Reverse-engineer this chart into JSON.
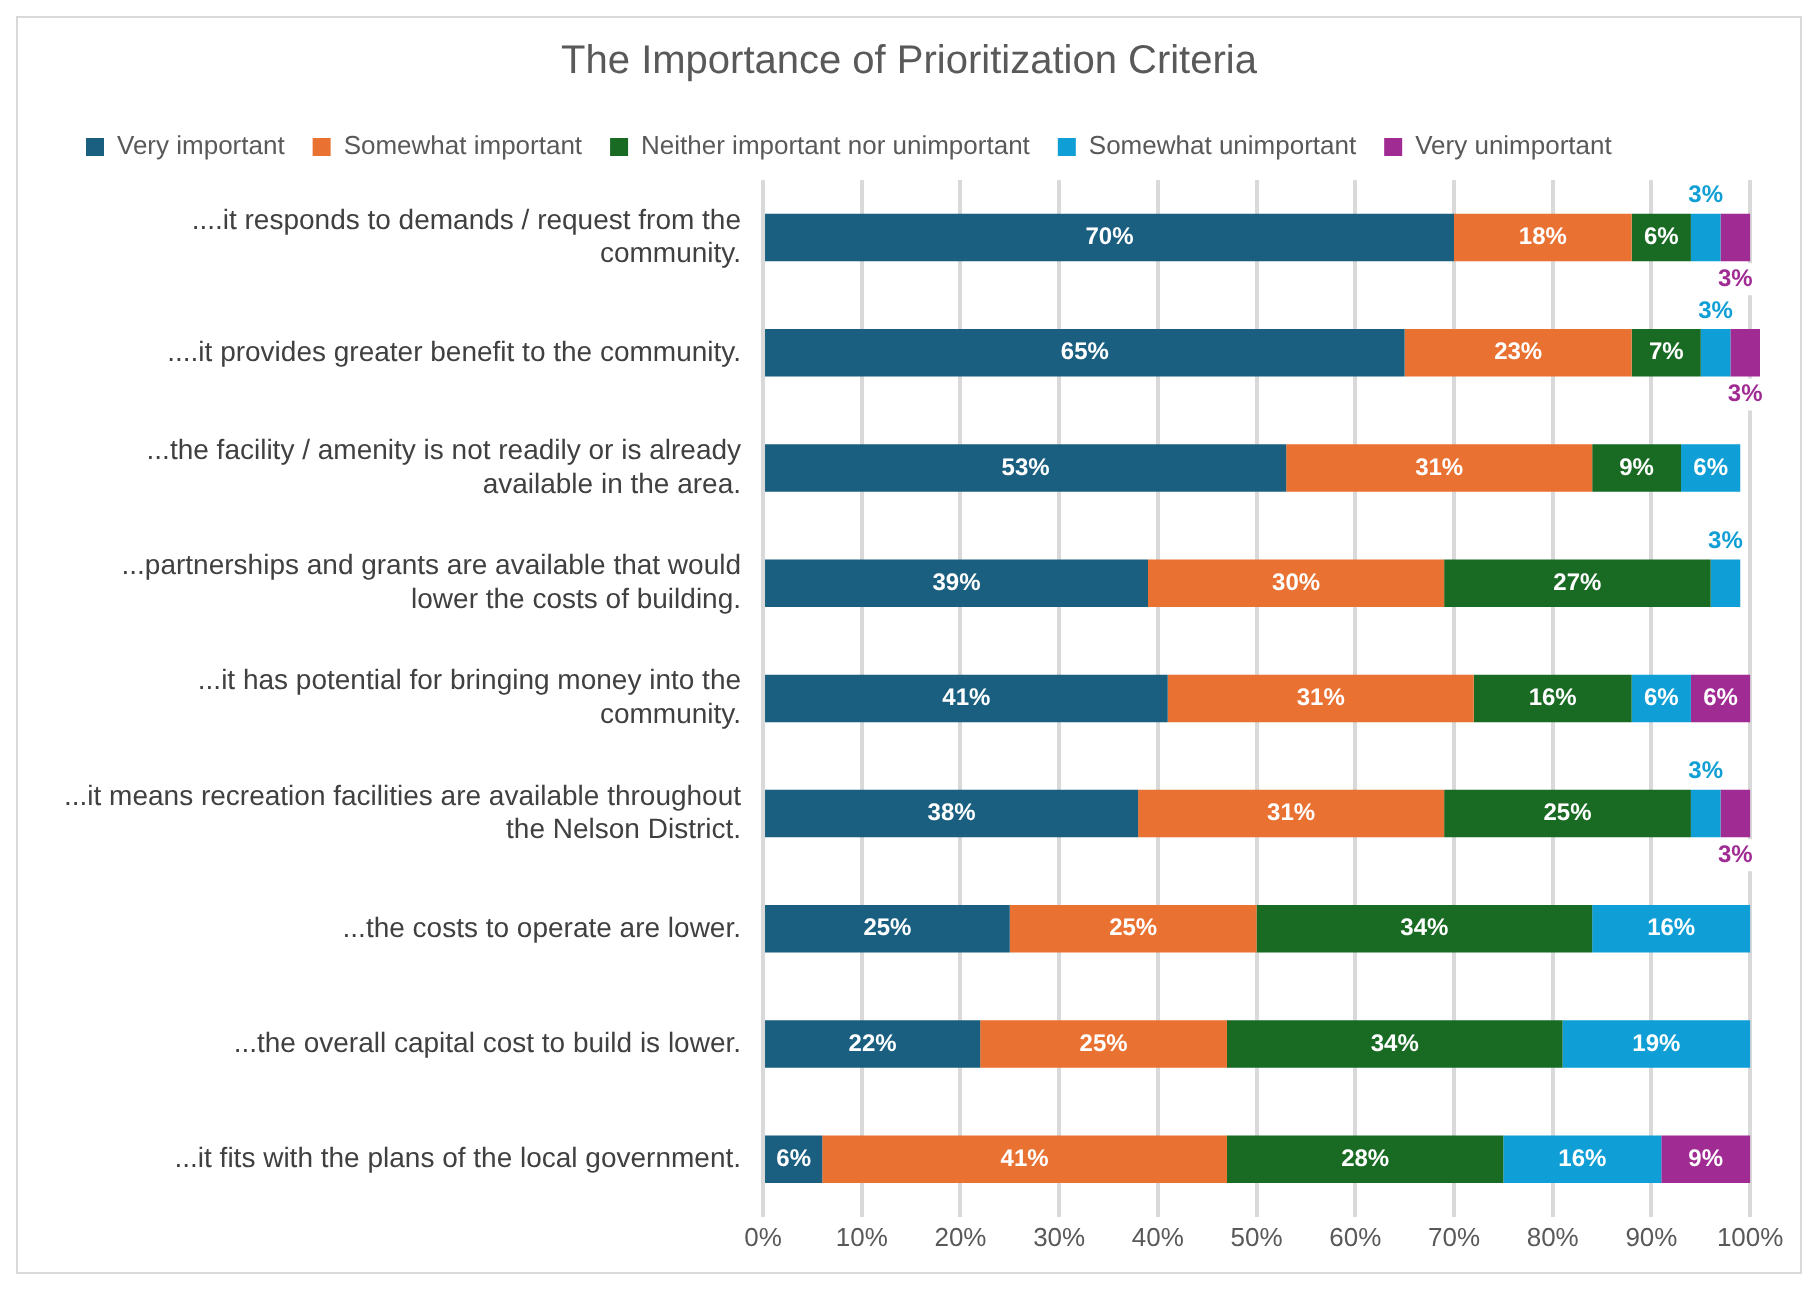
{
  "chart_data": {
    "type": "bar",
    "orientation": "horizontal",
    "stacked": true,
    "title": "The Importance of Prioritization Criteria",
    "categories": [
      "....it responds to demands / request from the community.",
      "....it provides greater benefit to the community.",
      "...the facility / amenity is not readily or is already available in the area.",
      "...partnerships and grants are available that would lower the costs of building.",
      "...it has potential for bringing money into the community.",
      "...it means recreation facilities are available throughout the Nelson District.",
      "...the costs to operate are lower.",
      "...the overall capital cost to build is lower.",
      "...it fits with the plans of the local government."
    ],
    "series": [
      {
        "name": "Very important",
        "color": "#1b5f80",
        "values": [
          70,
          65,
          53,
          39,
          41,
          38,
          25,
          22,
          6
        ],
        "value_labels": [
          "70%",
          "65%",
          "53%",
          "39%",
          "41%",
          "38%",
          "25%",
          "22%",
          "6%"
        ]
      },
      {
        "name": "Somewhat important",
        "color": "#e97132",
        "values": [
          18,
          23,
          31,
          30,
          31,
          31,
          25,
          25,
          41
        ],
        "value_labels": [
          "18%",
          "23%",
          "31%",
          "30%",
          "31%",
          "31%",
          "25%",
          "25%",
          "41%"
        ]
      },
      {
        "name": "Neither important nor unimportant",
        "color": "#196b24",
        "values": [
          6,
          7,
          9,
          27,
          16,
          25,
          34,
          34,
          28
        ],
        "value_labels": [
          "6%",
          "7%",
          "9%",
          "27%",
          "16%",
          "25%",
          "34%",
          "34%",
          "28%"
        ]
      },
      {
        "name": "Somewhat unimportant",
        "color": "#0f9ed5",
        "values": [
          3,
          3,
          6,
          3,
          6,
          3,
          16,
          19,
          16
        ],
        "value_labels": [
          "3%",
          "3%",
          "6%",
          "3%",
          "6%",
          "3%",
          "16%",
          "19%",
          "16%"
        ]
      },
      {
        "name": "Very unimportant",
        "color": "#a02b93",
        "values": [
          3,
          3,
          null,
          null,
          6,
          3,
          null,
          null,
          9
        ],
        "value_labels": [
          "3%",
          "3%",
          null,
          null,
          "6%",
          "3%",
          null,
          null,
          "9%"
        ]
      }
    ],
    "xlim": [
      0,
      101
    ],
    "xticks": [
      {
        "value": 0,
        "label": "0%"
      },
      {
        "value": 10,
        "label": "10%"
      },
      {
        "value": 20,
        "label": "20%"
      },
      {
        "value": 30,
        "label": "30%"
      },
      {
        "value": 40,
        "label": "40%"
      },
      {
        "value": 50,
        "label": "50%"
      },
      {
        "value": 60,
        "label": "60%"
      },
      {
        "value": 70,
        "label": "70%"
      },
      {
        "value": 80,
        "label": "80%"
      },
      {
        "value": 90,
        "label": "90%"
      },
      {
        "value": 100,
        "label": "100%"
      }
    ],
    "grid": "x",
    "legend": "top"
  }
}
